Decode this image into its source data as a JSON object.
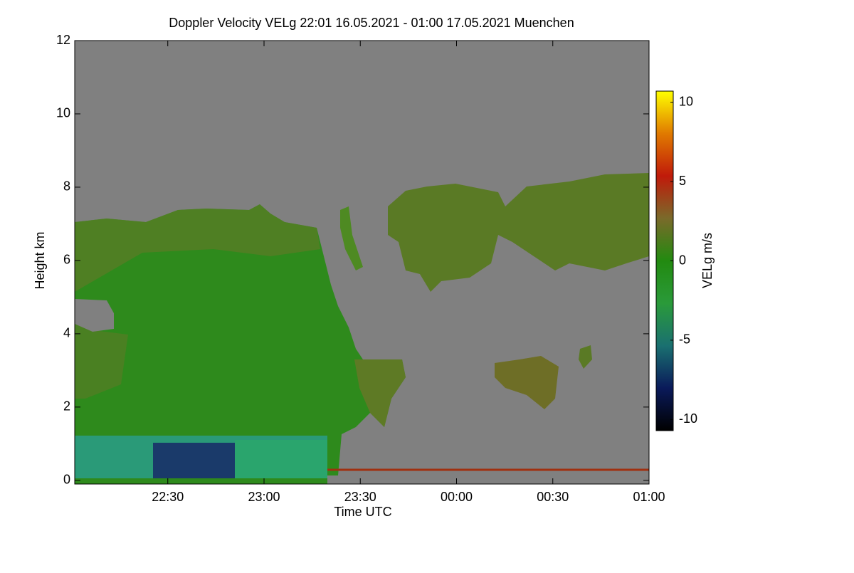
{
  "chart_data": {
    "type": "heatmap",
    "title": "Doppler Velocity VELg   22:01 16.05.2021 - 01:00 17.05.2021 Muenchen",
    "xlabel": "Time UTC",
    "ylabel": "Height km",
    "colorbar_label": "VELg m/s",
    "xlim": [
      1321,
      1500
    ],
    "xticks": [
      {
        "value": 1350,
        "label": "22:30"
      },
      {
        "value": 1380,
        "label": "23:00"
      },
      {
        "value": 1410,
        "label": "23:30"
      },
      {
        "value": 1440,
        "label": "00:00"
      },
      {
        "value": 1470,
        "label": "00:30"
      },
      {
        "value": 1500,
        "label": "01:00"
      }
    ],
    "ylim": [
      -0.1,
      12
    ],
    "yticks": [
      0,
      2,
      4,
      6,
      8,
      10,
      12
    ],
    "clim": [
      -10.7,
      10.7
    ],
    "cticks": [
      -10,
      -5,
      0,
      5,
      10
    ],
    "colormap": [
      "#000000",
      "#0a1a5a",
      "#1a7070",
      "#2a9a3a",
      "#228a10",
      "#7a6a2a",
      "#c01a0a",
      "#e07a00",
      "#ffff00"
    ],
    "background": "#808080"
  }
}
